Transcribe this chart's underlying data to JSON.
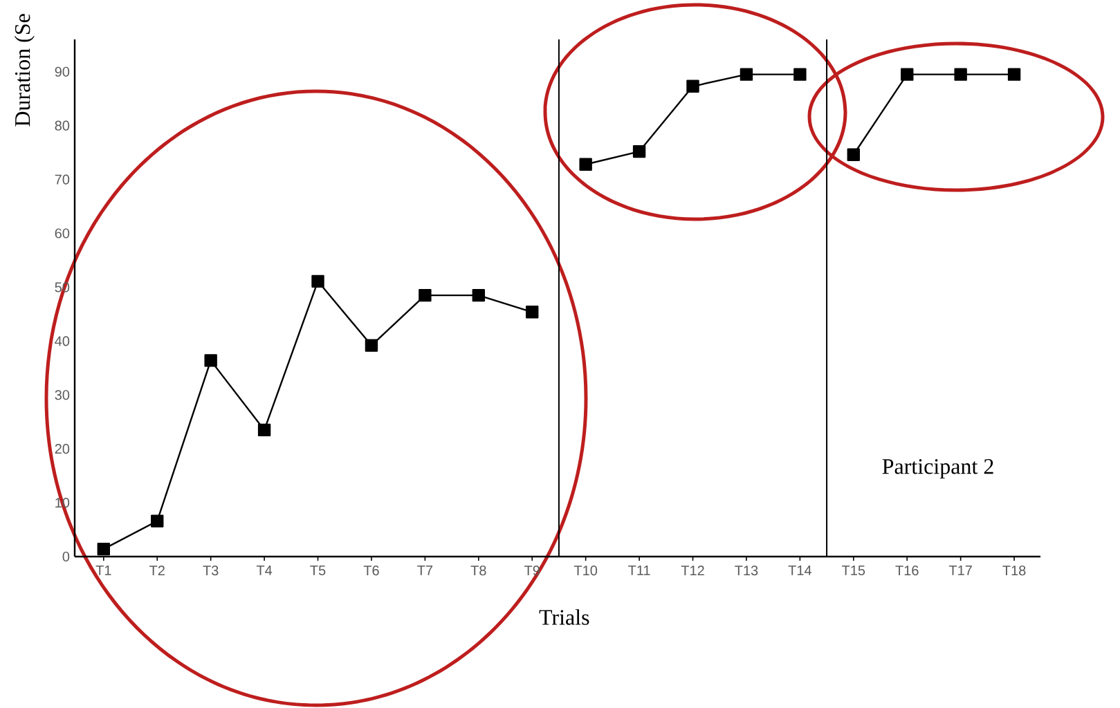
{
  "chart_data": {
    "type": "line",
    "xlabel": "Trials",
    "ylabel": "Duration (Se",
    "categories": [
      "T1",
      "T2",
      "T3",
      "T4",
      "T5",
      "T6",
      "T7",
      "T8",
      "T9",
      "T10",
      "T11",
      "T12",
      "T13",
      "T14",
      "T15",
      "T16",
      "T17",
      "T18"
    ],
    "series": [
      {
        "color": "#000000",
        "values": [
          1.4,
          6.6,
          36.4,
          23.5,
          51.1,
          39.2,
          48.5,
          48.5,
          45.4,
          null,
          null,
          null,
          null,
          null,
          null,
          null,
          null,
          null
        ]
      },
      {
        "color": "#000000",
        "values": [
          null,
          null,
          null,
          null,
          null,
          null,
          null,
          null,
          null,
          72.8,
          75.2,
          87.3,
          89.5,
          89.5,
          null,
          null,
          null,
          null
        ]
      },
      {
        "color": "#000000",
        "values": [
          null,
          null,
          null,
          null,
          null,
          null,
          null,
          null,
          null,
          null,
          null,
          null,
          null,
          null,
          74.6,
          89.5,
          89.5,
          89.5
        ]
      }
    ],
    "ylim": [
      0,
      96
    ],
    "yticks": [
      0,
      10,
      20,
      30,
      40,
      50,
      60,
      70,
      80,
      90
    ],
    "annotations": [
      "Participant 2"
    ],
    "marker": "square",
    "line_style": "solid"
  }
}
